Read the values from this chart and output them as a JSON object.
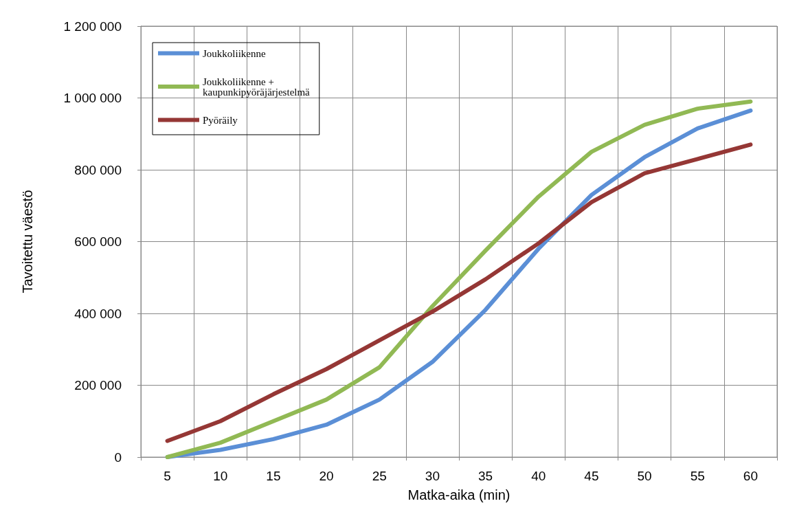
{
  "chart_data": {
    "type": "line",
    "xlabel": "Matka-aika (min)",
    "ylabel": "Tavoitettu väestö",
    "categories": [
      "5",
      "10",
      "15",
      "20",
      "25",
      "30",
      "35",
      "40",
      "45",
      "50",
      "55",
      "60"
    ],
    "series": [
      {
        "name": "Joukkoliikenne",
        "color": "#5b8fd6",
        "values": [
          0,
          20000,
          50000,
          90000,
          160000,
          265000,
          410000,
          580000,
          730000,
          835000,
          915000,
          965000
        ]
      },
      {
        "name": "Joukkoliikenne + kaupunkipyöräjärjestelmä",
        "color": "#91b954",
        "values": [
          0,
          40000,
          100000,
          160000,
          250000,
          420000,
          575000,
          725000,
          850000,
          925000,
          970000,
          990000
        ]
      },
      {
        "name": "Pyöräily",
        "color": "#953735",
        "values": [
          45000,
          100000,
          175000,
          245000,
          325000,
          405000,
          495000,
          595000,
          710000,
          790000,
          830000,
          870000
        ]
      }
    ],
    "ylim": [
      0,
      1200000
    ],
    "yticks": [
      0,
      200000,
      400000,
      600000,
      800000,
      1000000,
      1200000
    ],
    "grid": true,
    "legend": "top left",
    "marker": "none",
    "line_style": "solid"
  }
}
